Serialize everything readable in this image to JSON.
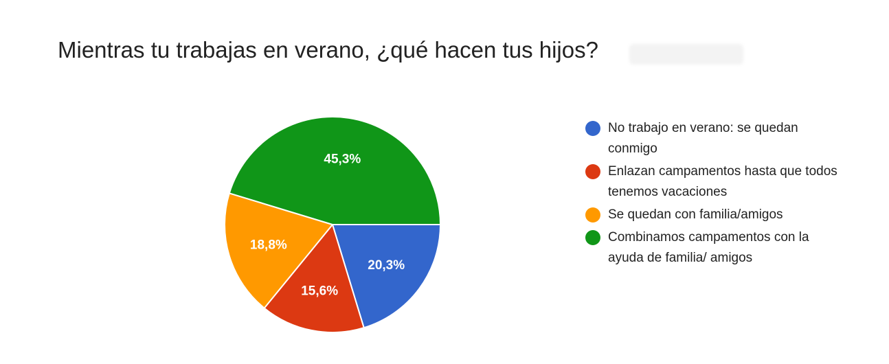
{
  "chart_data": {
    "type": "pie",
    "title": "Mientras tu trabajas en verano, ¿qué hacen tus hijos?",
    "slices": [
      {
        "label": "No trabajo en verano: se quedan conmigo",
        "value": 20.3,
        "value_label": "20,3%",
        "color": "#3366cc"
      },
      {
        "label": "Enlazan campamentos hasta que todos tenemos vacaciones",
        "value": 15.6,
        "value_label": "15,6%",
        "color": "#dc3912"
      },
      {
        "label": "Se quedan con familia/amigos",
        "value": 18.8,
        "value_label": "18,8%",
        "color": "#ff9900"
      },
      {
        "label": "Combinamos campamentos con la ayuda de familia/ amigos",
        "value": 45.3,
        "value_label": "45,3%",
        "color": "#109618"
      }
    ],
    "legend_position": "right"
  }
}
